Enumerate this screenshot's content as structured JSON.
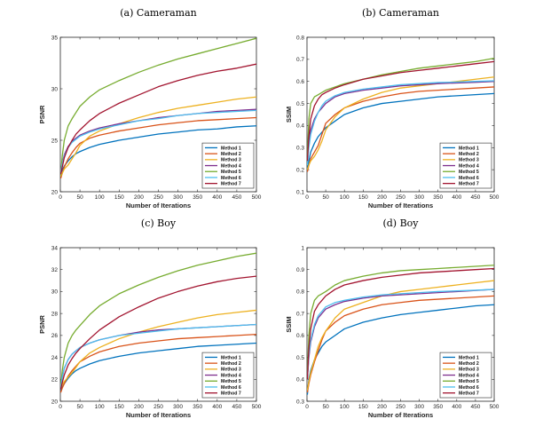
{
  "chart_data": [
    {
      "type": "line",
      "title": "(a) Cameraman",
      "xlabel": "Number of Iterations",
      "ylabel": "PSNR",
      "xlim": [
        0,
        500
      ],
      "ylim": [
        20,
        35
      ],
      "xticks": [
        0,
        50,
        100,
        150,
        200,
        250,
        300,
        350,
        400,
        450,
        500
      ],
      "yticks": [
        20,
        25,
        30,
        35
      ],
      "legend_position": "bottom-right",
      "x": [
        1,
        5,
        10,
        20,
        30,
        40,
        50,
        75,
        100,
        150,
        200,
        250,
        300,
        350,
        400,
        450,
        500
      ],
      "series": [
        {
          "name": "Method 1",
          "color": "#0072BD",
          "values": [
            21.8,
            22.1,
            22.5,
            23.0,
            23.4,
            23.7,
            23.9,
            24.3,
            24.6,
            25.0,
            25.3,
            25.6,
            25.8,
            26.0,
            26.1,
            26.3,
            26.4
          ]
        },
        {
          "name": "Method 2",
          "color": "#D95319",
          "values": [
            21.3,
            21.8,
            22.4,
            23.2,
            23.8,
            24.3,
            24.7,
            25.2,
            25.5,
            25.9,
            26.2,
            26.5,
            26.7,
            26.9,
            27.0,
            27.1,
            27.2
          ]
        },
        {
          "name": "Method 3",
          "color": "#EDB120",
          "values": [
            21.5,
            21.8,
            22.2,
            22.6,
            23.2,
            23.8,
            24.5,
            25.4,
            25.9,
            26.6,
            27.2,
            27.7,
            28.1,
            28.4,
            28.7,
            29.0,
            29.2
          ]
        },
        {
          "name": "Method 4",
          "color": "#7E2F8E",
          "values": [
            22.0,
            22.8,
            23.6,
            24.4,
            24.9,
            25.2,
            25.5,
            25.9,
            26.2,
            26.6,
            26.9,
            27.2,
            27.4,
            27.6,
            27.8,
            27.9,
            28.0
          ]
        },
        {
          "name": "Method 5",
          "color": "#77AC30",
          "values": [
            21.6,
            23.5,
            25.0,
            26.4,
            27.1,
            27.7,
            28.3,
            29.2,
            29.9,
            30.8,
            31.6,
            32.3,
            32.9,
            33.4,
            33.9,
            34.4,
            34.9
          ]
        },
        {
          "name": "Method 6",
          "color": "#4DBEEE",
          "values": [
            21.9,
            22.7,
            23.5,
            24.3,
            24.8,
            25.1,
            25.4,
            25.8,
            26.1,
            26.5,
            26.9,
            27.1,
            27.4,
            27.6,
            27.7,
            27.8,
            27.9
          ]
        },
        {
          "name": "Method 7",
          "color": "#A2142F",
          "values": [
            21.7,
            22.4,
            23.3,
            24.3,
            25.0,
            25.6,
            26.0,
            26.9,
            27.6,
            28.6,
            29.4,
            30.2,
            30.8,
            31.3,
            31.7,
            32.0,
            32.4
          ]
        }
      ]
    },
    {
      "type": "line",
      "title": "(b) Cameraman",
      "xlabel": "Number of Iterations",
      "ylabel": "SSIM",
      "xlim": [
        0,
        500
      ],
      "ylim": [
        0.1,
        0.8
      ],
      "xticks": [
        0,
        50,
        100,
        150,
        200,
        250,
        300,
        350,
        400,
        450,
        500
      ],
      "yticks": [
        0.1,
        0.2,
        0.3,
        0.4,
        0.5,
        0.6,
        0.7,
        0.8
      ],
      "legend_position": "bottom-right",
      "x": [
        1,
        5,
        10,
        20,
        30,
        40,
        50,
        75,
        100,
        150,
        200,
        250,
        300,
        350,
        400,
        450,
        500
      ],
      "series": [
        {
          "name": "Method 1",
          "color": "#0072BD",
          "values": [
            0.2,
            0.24,
            0.28,
            0.32,
            0.35,
            0.37,
            0.39,
            0.42,
            0.45,
            0.48,
            0.5,
            0.51,
            0.52,
            0.53,
            0.535,
            0.54,
            0.545
          ]
        },
        {
          "name": "Method 2",
          "color": "#D95319",
          "values": [
            0.19,
            0.22,
            0.25,
            0.28,
            0.31,
            0.36,
            0.41,
            0.45,
            0.48,
            0.51,
            0.53,
            0.545,
            0.555,
            0.56,
            0.565,
            0.57,
            0.575
          ]
        },
        {
          "name": "Method 3",
          "color": "#EDB120",
          "values": [
            0.2,
            0.22,
            0.24,
            0.26,
            0.29,
            0.33,
            0.38,
            0.44,
            0.48,
            0.52,
            0.55,
            0.57,
            0.58,
            0.59,
            0.6,
            0.61,
            0.62
          ]
        },
        {
          "name": "Method 4",
          "color": "#7E2F8E",
          "values": [
            0.24,
            0.33,
            0.38,
            0.43,
            0.46,
            0.48,
            0.5,
            0.53,
            0.545,
            0.56,
            0.57,
            0.58,
            0.585,
            0.59,
            0.593,
            0.596,
            0.6
          ]
        },
        {
          "name": "Method 5",
          "color": "#77AC30",
          "values": [
            0.25,
            0.43,
            0.5,
            0.53,
            0.54,
            0.55,
            0.56,
            0.575,
            0.59,
            0.61,
            0.63,
            0.645,
            0.66,
            0.67,
            0.68,
            0.69,
            0.705
          ]
        },
        {
          "name": "Method 6",
          "color": "#4DBEEE",
          "values": [
            0.22,
            0.3,
            0.36,
            0.42,
            0.46,
            0.49,
            0.51,
            0.535,
            0.55,
            0.565,
            0.575,
            0.585,
            0.59,
            0.595,
            0.597,
            0.6,
            0.603
          ]
        },
        {
          "name": "Method 7",
          "color": "#A2142F",
          "values": [
            0.24,
            0.35,
            0.43,
            0.49,
            0.52,
            0.54,
            0.55,
            0.57,
            0.585,
            0.61,
            0.625,
            0.64,
            0.65,
            0.66,
            0.67,
            0.68,
            0.69
          ]
        }
      ]
    },
    {
      "type": "line",
      "title": "(c) Boy",
      "xlabel": "Number of Iterations",
      "ylabel": "PSNR",
      "xlim": [
        0,
        500
      ],
      "ylim": [
        20,
        34
      ],
      "xticks": [
        0,
        50,
        100,
        150,
        200,
        250,
        300,
        350,
        400,
        450,
        500
      ],
      "yticks": [
        20,
        22,
        24,
        26,
        28,
        30,
        32,
        34
      ],
      "legend_position": "bottom-right",
      "x": [
        1,
        5,
        10,
        20,
        30,
        40,
        50,
        75,
        100,
        150,
        200,
        250,
        300,
        350,
        400,
        450,
        500
      ],
      "series": [
        {
          "name": "Method 1",
          "color": "#0072BD",
          "values": [
            21.0,
            21.3,
            21.6,
            22.1,
            22.5,
            22.8,
            23.0,
            23.4,
            23.7,
            24.1,
            24.4,
            24.6,
            24.8,
            25.0,
            25.1,
            25.2,
            25.3
          ]
        },
        {
          "name": "Method 2",
          "color": "#D95319",
          "values": [
            20.8,
            21.2,
            21.6,
            22.3,
            22.8,
            23.2,
            23.6,
            24.1,
            24.5,
            25.0,
            25.3,
            25.5,
            25.7,
            25.8,
            25.9,
            26.0,
            26.1
          ]
        },
        {
          "name": "Method 3",
          "color": "#EDB120",
          "values": [
            21.2,
            21.5,
            21.8,
            22.2,
            22.6,
            23.1,
            23.6,
            24.4,
            24.9,
            25.7,
            26.3,
            26.8,
            27.2,
            27.6,
            27.9,
            28.1,
            28.3
          ]
        },
        {
          "name": "Method 4",
          "color": "#7E2F8E",
          "values": [
            21.3,
            22.2,
            23.0,
            23.8,
            24.3,
            24.6,
            24.9,
            25.3,
            25.6,
            26.0,
            26.3,
            26.5,
            26.6,
            26.7,
            26.8,
            26.9,
            27.0
          ]
        },
        {
          "name": "Method 5",
          "color": "#77AC30",
          "values": [
            21.3,
            22.8,
            24.0,
            25.3,
            26.0,
            26.5,
            26.9,
            27.9,
            28.7,
            29.8,
            30.6,
            31.3,
            31.9,
            32.4,
            32.8,
            33.2,
            33.5
          ]
        },
        {
          "name": "Method 6",
          "color": "#4DBEEE",
          "values": [
            21.2,
            22.2,
            23.0,
            23.8,
            24.3,
            24.6,
            24.9,
            25.3,
            25.6,
            26.0,
            26.2,
            26.4,
            26.6,
            26.7,
            26.8,
            26.9,
            27.0
          ]
        },
        {
          "name": "Method 7",
          "color": "#A2142F",
          "values": [
            21.1,
            21.7,
            22.4,
            23.3,
            23.9,
            24.4,
            24.8,
            25.7,
            26.5,
            27.7,
            28.6,
            29.4,
            30.0,
            30.5,
            30.9,
            31.2,
            31.4
          ]
        }
      ]
    },
    {
      "type": "line",
      "title": "(d) Boy",
      "xlabel": "Number of Iterations",
      "ylabel": "SSIM",
      "xlim": [
        0,
        500
      ],
      "ylim": [
        0.3,
        1.0
      ],
      "xticks": [
        0,
        50,
        100,
        150,
        200,
        250,
        300,
        350,
        400,
        450,
        500
      ],
      "yticks": [
        0.3,
        0.4,
        0.5,
        0.6,
        0.7,
        0.8,
        0.9,
        1.0
      ],
      "legend_position": "bottom-right",
      "x": [
        1,
        5,
        10,
        20,
        30,
        40,
        50,
        75,
        100,
        150,
        200,
        250,
        300,
        350,
        400,
        450,
        500
      ],
      "series": [
        {
          "name": "Method 1",
          "color": "#0072BD",
          "values": [
            0.33,
            0.4,
            0.44,
            0.49,
            0.52,
            0.55,
            0.57,
            0.6,
            0.63,
            0.66,
            0.68,
            0.695,
            0.705,
            0.715,
            0.725,
            0.735,
            0.74
          ]
        },
        {
          "name": "Method 2",
          "color": "#D95319",
          "values": [
            0.34,
            0.38,
            0.42,
            0.48,
            0.53,
            0.58,
            0.62,
            0.66,
            0.69,
            0.72,
            0.74,
            0.75,
            0.76,
            0.765,
            0.77,
            0.775,
            0.78
          ]
        },
        {
          "name": "Method 3",
          "color": "#EDB120",
          "values": [
            0.35,
            0.39,
            0.43,
            0.49,
            0.55,
            0.59,
            0.62,
            0.68,
            0.72,
            0.75,
            0.78,
            0.8,
            0.81,
            0.82,
            0.83,
            0.84,
            0.85
          ]
        },
        {
          "name": "Method 4",
          "color": "#7E2F8E",
          "values": [
            0.4,
            0.5,
            0.57,
            0.64,
            0.68,
            0.7,
            0.72,
            0.74,
            0.755,
            0.77,
            0.78,
            0.785,
            0.79,
            0.795,
            0.8,
            0.805,
            0.81
          ]
        },
        {
          "name": "Method 5",
          "color": "#77AC30",
          "values": [
            0.42,
            0.6,
            0.7,
            0.76,
            0.78,
            0.79,
            0.8,
            0.83,
            0.85,
            0.87,
            0.885,
            0.895,
            0.9,
            0.905,
            0.91,
            0.915,
            0.92
          ]
        },
        {
          "name": "Method 6",
          "color": "#4DBEEE",
          "values": [
            0.4,
            0.51,
            0.58,
            0.65,
            0.69,
            0.71,
            0.73,
            0.75,
            0.76,
            0.775,
            0.785,
            0.79,
            0.795,
            0.8,
            0.803,
            0.806,
            0.81
          ]
        },
        {
          "name": "Method 7",
          "color": "#A2142F",
          "values": [
            0.4,
            0.54,
            0.63,
            0.71,
            0.74,
            0.76,
            0.78,
            0.81,
            0.83,
            0.85,
            0.865,
            0.875,
            0.885,
            0.89,
            0.895,
            0.9,
            0.905
          ]
        }
      ]
    }
  ]
}
